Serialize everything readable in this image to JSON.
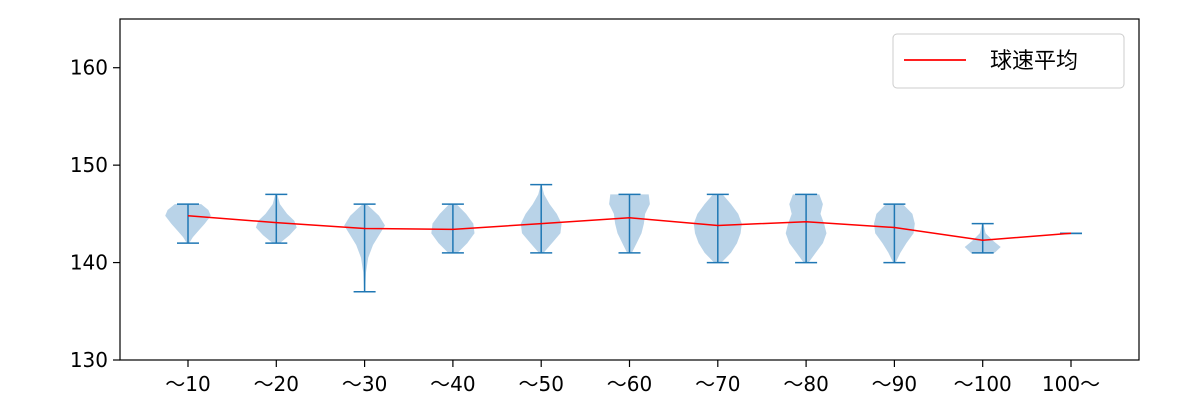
{
  "chart_data": {
    "type": "violin",
    "title": "",
    "xlabel": "",
    "ylabel": "",
    "categories": [
      "～10",
      "～20",
      "～30",
      "～40",
      "～50",
      "～60",
      "～70",
      "～80",
      "～90",
      "～100",
      "100～"
    ],
    "ylim": [
      130,
      165
    ],
    "yticks": [
      130,
      140,
      150,
      160
    ],
    "grid": false,
    "legend": {
      "placement": "top-right",
      "entries": [
        {
          "label": "球速平均",
          "color": "#ff0000"
        }
      ]
    },
    "colors": {
      "violin_fill": "#a8c8e2",
      "violin_line": "#1f77b4",
      "mean_line": "#ff0000"
    },
    "distributions": [
      {
        "category": "～10",
        "min": 142,
        "max": 146,
        "profile": [
          [
            142,
            0.05
          ],
          [
            142.6,
            0.2
          ],
          [
            143.3,
            0.45
          ],
          [
            144,
            0.7
          ],
          [
            144.8,
            0.95
          ],
          [
            145.4,
            0.85
          ],
          [
            146,
            0.55
          ]
        ]
      },
      {
        "category": "～20",
        "min": 142,
        "max": 147,
        "profile": [
          [
            142,
            0.15
          ],
          [
            142.8,
            0.55
          ],
          [
            143.6,
            0.85
          ],
          [
            144.3,
            0.75
          ],
          [
            145,
            0.45
          ],
          [
            146,
            0.15
          ],
          [
            147,
            0.04
          ]
        ]
      },
      {
        "category": "～30",
        "min": 137,
        "max": 146,
        "profile": [
          [
            137,
            0.02
          ],
          [
            139,
            0.06
          ],
          [
            140.5,
            0.15
          ],
          [
            141.8,
            0.35
          ],
          [
            142.8,
            0.6
          ],
          [
            143.8,
            0.85
          ],
          [
            144.8,
            0.6
          ],
          [
            145.5,
            0.3
          ],
          [
            146,
            0.08
          ]
        ]
      },
      {
        "category": "～40",
        "min": 141,
        "max": 146,
        "profile": [
          [
            141,
            0.2
          ],
          [
            142,
            0.6
          ],
          [
            143,
            0.9
          ],
          [
            144,
            0.85
          ],
          [
            145,
            0.55
          ],
          [
            146,
            0.15
          ]
        ]
      },
      {
        "category": "～50",
        "min": 141,
        "max": 148,
        "profile": [
          [
            141,
            0.1
          ],
          [
            142,
            0.45
          ],
          [
            143,
            0.8
          ],
          [
            144,
            0.85
          ],
          [
            145,
            0.65
          ],
          [
            146,
            0.35
          ],
          [
            147,
            0.12
          ],
          [
            148,
            0.02
          ]
        ]
      },
      {
        "category": "～60",
        "min": 141,
        "max": 147,
        "profile": [
          [
            141,
            0.1
          ],
          [
            142,
            0.3
          ],
          [
            143,
            0.5
          ],
          [
            144,
            0.6
          ],
          [
            145,
            0.65
          ],
          [
            146,
            0.85
          ],
          [
            147,
            0.8
          ]
        ]
      },
      {
        "category": "～70",
        "min": 140,
        "max": 147,
        "profile": [
          [
            140,
            0.15
          ],
          [
            141,
            0.55
          ],
          [
            142,
            0.8
          ],
          [
            143,
            0.95
          ],
          [
            144,
            1.0
          ],
          [
            145,
            0.85
          ],
          [
            146,
            0.55
          ],
          [
            147,
            0.2
          ]
        ]
      },
      {
        "category": "～80",
        "min": 140,
        "max": 147,
        "profile": [
          [
            140,
            0.1
          ],
          [
            141,
            0.4
          ],
          [
            142,
            0.7
          ],
          [
            143,
            0.85
          ],
          [
            144,
            0.75
          ],
          [
            145,
            0.6
          ],
          [
            146,
            0.7
          ],
          [
            147,
            0.55
          ]
        ]
      },
      {
        "category": "～90",
        "min": 140,
        "max": 146,
        "profile": [
          [
            140,
            0.05
          ],
          [
            141,
            0.25
          ],
          [
            142,
            0.5
          ],
          [
            143,
            0.8
          ],
          [
            144,
            0.85
          ],
          [
            145,
            0.75
          ],
          [
            146,
            0.35
          ]
        ]
      },
      {
        "category": "～100",
        "min": 141,
        "max": 144,
        "profile": [
          [
            141,
            0.5
          ],
          [
            141.6,
            0.75
          ],
          [
            142.2,
            0.45
          ],
          [
            143,
            0.12
          ],
          [
            144,
            0.03
          ]
        ]
      },
      {
        "category": "100～",
        "min": 143,
        "max": 143,
        "profile": []
      }
    ],
    "series": [
      {
        "name": "球速平均",
        "values": [
          144.8,
          144.1,
          143.5,
          143.4,
          144.0,
          144.6,
          143.8,
          144.2,
          143.6,
          142.3,
          143.0
        ]
      }
    ]
  }
}
